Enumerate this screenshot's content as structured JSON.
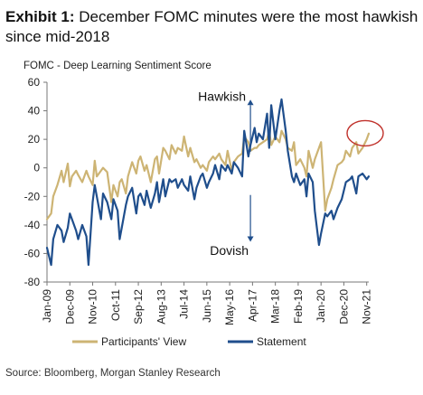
{
  "exhibit": {
    "label": "Exhibit 1:",
    "title": "December FOMC minutes were the most hawkish since mid-2018"
  },
  "source": "Source: Bloomberg, Morgan Stanley Research",
  "colors": {
    "participants": "#CDB474",
    "statement": "#1F4E8C",
    "highlight_circle": "#C0312B",
    "arrow": "#1F4E8C"
  },
  "chart_data": {
    "type": "line",
    "title": "FOMC - Deep Learning Sentiment Score",
    "xlabel": "",
    "ylabel": "",
    "ylim": [
      -80,
      60
    ],
    "yticks": [
      60,
      40,
      20,
      0,
      -20,
      -40,
      -60,
      -80
    ],
    "xlim": [
      "Jan-09",
      "Dec-21"
    ],
    "xticks": [
      "Jan-09",
      "Dec-09",
      "Nov-10",
      "Oct-11",
      "Sep-12",
      "Aug-13",
      "Jul-14",
      "Jun-15",
      "May-16",
      "Apr-17",
      "Mar-18",
      "Feb-19",
      "Jan-20",
      "Dec-20",
      "Nov-21"
    ],
    "legend_position": "bottom",
    "grid": false,
    "annotations": [
      {
        "text": "Hawkish",
        "direction": "up",
        "x": "Mar-17"
      },
      {
        "text": "Dovish",
        "direction": "down",
        "x": "Mar-17"
      },
      {
        "text": "",
        "shape": "circle",
        "x": "Dec-21",
        "y": 23
      }
    ],
    "series": [
      {
        "name": "Participants' View",
        "x": [
          "Jan-09",
          "Mar-09",
          "Apr-09",
          "Jun-09",
          "Aug-09",
          "Sep-09",
          "Nov-09",
          "Dec-09",
          "Jan-10",
          "Mar-10",
          "Apr-10",
          "Jun-10",
          "Aug-10",
          "Sep-10",
          "Nov-10",
          "Dec-10",
          "Jan-11",
          "Mar-11",
          "Apr-11",
          "Jun-11",
          "Aug-11",
          "Sep-11",
          "Nov-11",
          "Dec-11",
          "Jan-12",
          "Mar-12",
          "Apr-12",
          "Jun-12",
          "Aug-12",
          "Sep-12",
          "Oct-12",
          "Dec-12",
          "Jan-13",
          "Mar-13",
          "May-13",
          "Jun-13",
          "Jul-13",
          "Sep-13",
          "Oct-13",
          "Dec-13",
          "Jan-14",
          "Mar-14",
          "Apr-14",
          "Jun-14",
          "Jul-14",
          "Sep-14",
          "Oct-14",
          "Dec-14",
          "Jan-15",
          "Mar-15",
          "Apr-15",
          "Jun-15",
          "Jul-15",
          "Sep-15",
          "Oct-15",
          "Dec-15",
          "Jan-16",
          "Mar-16",
          "Apr-16",
          "Jun-16",
          "Jul-16",
          "Sep-16",
          "Nov-16",
          "Dec-16",
          "Feb-17",
          "Mar-17",
          "May-17",
          "Jun-17",
          "Jul-17",
          "Sep-17",
          "Nov-17",
          "Dec-17",
          "Jan-18",
          "Mar-18",
          "May-18",
          "Jun-18",
          "Aug-18",
          "Sep-18",
          "Nov-18",
          "Dec-18",
          "Jan-19",
          "Mar-19",
          "May-19",
          "Jun-19",
          "Jul-19",
          "Sep-19",
          "Oct-19",
          "Dec-19",
          "Jan-20",
          "Mar-20",
          "Apr-20",
          "Jun-20",
          "Jul-20",
          "Sep-20",
          "Nov-20",
          "Dec-20",
          "Jan-21",
          "Mar-21",
          "Apr-21",
          "Jun-21",
          "Jul-21",
          "Sep-21",
          "Nov-21",
          "Dec-21"
        ],
        "values": [
          -36,
          -32,
          -20,
          -12,
          -2,
          -10,
          3,
          -13,
          -6,
          -2,
          -5,
          -10,
          -2,
          -6,
          -12,
          5,
          -6,
          -2,
          0,
          -3,
          -24,
          -12,
          -20,
          -10,
          -8,
          -18,
          -6,
          4,
          -4,
          5,
          8,
          -2,
          2,
          -10,
          6,
          8,
          -4,
          14,
          12,
          6,
          16,
          10,
          14,
          12,
          22,
          8,
          14,
          4,
          6,
          0,
          2,
          -2,
          4,
          8,
          6,
          10,
          6,
          2,
          12,
          -2,
          4,
          8,
          10,
          22,
          18,
          12,
          14,
          14,
          16,
          18,
          20,
          26,
          16,
          22,
          18,
          26,
          20,
          14,
          12,
          18,
          2,
          6,
          0,
          -6,
          12,
          0,
          6,
          14,
          18,
          -30,
          -22,
          -14,
          -8,
          2,
          4,
          6,
          12,
          8,
          14,
          18,
          10,
          14,
          20,
          24
        ]
      },
      {
        "name": "Statement",
        "x": [
          "Jan-09",
          "Mar-09",
          "Apr-09",
          "Jun-09",
          "Aug-09",
          "Sep-09",
          "Nov-09",
          "Dec-09",
          "Jan-10",
          "Mar-10",
          "Apr-10",
          "Jun-10",
          "Aug-10",
          "Sep-10",
          "Nov-10",
          "Dec-10",
          "Jan-11",
          "Mar-11",
          "Apr-11",
          "Jun-11",
          "Aug-11",
          "Sep-11",
          "Nov-11",
          "Dec-11",
          "Jan-12",
          "Mar-12",
          "Apr-12",
          "Jun-12",
          "Aug-12",
          "Sep-12",
          "Oct-12",
          "Dec-12",
          "Jan-13",
          "Mar-13",
          "May-13",
          "Jun-13",
          "Jul-13",
          "Sep-13",
          "Oct-13",
          "Dec-13",
          "Jan-14",
          "Mar-14",
          "Apr-14",
          "Jun-14",
          "Jul-14",
          "Sep-14",
          "Oct-14",
          "Dec-14",
          "Jan-15",
          "Mar-15",
          "Apr-15",
          "Jun-15",
          "Jul-15",
          "Sep-15",
          "Oct-15",
          "Dec-15",
          "Jan-16",
          "Mar-16",
          "Apr-16",
          "Jun-16",
          "Jul-16",
          "Sep-16",
          "Nov-16",
          "Dec-16",
          "Feb-17",
          "Mar-17",
          "May-17",
          "Jun-17",
          "Jul-17",
          "Sep-17",
          "Nov-17",
          "Dec-17",
          "Jan-18",
          "Mar-18",
          "May-18",
          "Jun-18",
          "Aug-18",
          "Sep-18",
          "Nov-18",
          "Dec-18",
          "Jan-19",
          "Mar-19",
          "May-19",
          "Jun-19",
          "Jul-19",
          "Sep-19",
          "Oct-19",
          "Dec-19",
          "Jan-20",
          "Mar-20",
          "Apr-20",
          "Jun-20",
          "Jul-20",
          "Sep-20",
          "Nov-20",
          "Dec-20",
          "Jan-21",
          "Mar-21",
          "Apr-21",
          "Jun-21",
          "Jul-21",
          "Sep-21",
          "Nov-21",
          "Dec-21"
        ],
        "values": [
          -56,
          -68,
          -50,
          -40,
          -44,
          -52,
          -42,
          -32,
          -36,
          -44,
          -50,
          -40,
          -48,
          -68,
          -24,
          -12,
          -20,
          -36,
          -18,
          -24,
          -36,
          -22,
          -30,
          -50,
          -42,
          -26,
          -20,
          -14,
          -32,
          -20,
          -18,
          -26,
          -16,
          -28,
          -18,
          -10,
          -24,
          -8,
          -20,
          -8,
          -10,
          -8,
          -14,
          -8,
          -12,
          -16,
          -6,
          -22,
          -14,
          -6,
          -4,
          -14,
          -10,
          -4,
          2,
          -8,
          2,
          -2,
          2,
          -4,
          4,
          0,
          -6,
          26,
          8,
          16,
          28,
          18,
          24,
          20,
          38,
          14,
          44,
          20,
          40,
          48,
          26,
          12,
          -6,
          -10,
          -4,
          -12,
          -8,
          -20,
          -4,
          -10,
          -30,
          -54,
          -46,
          -32,
          -34,
          -30,
          -36,
          -28,
          -22,
          -16,
          -10,
          -8,
          -6,
          -18,
          -6,
          -4,
          -8,
          -6
        ]
      }
    ]
  }
}
